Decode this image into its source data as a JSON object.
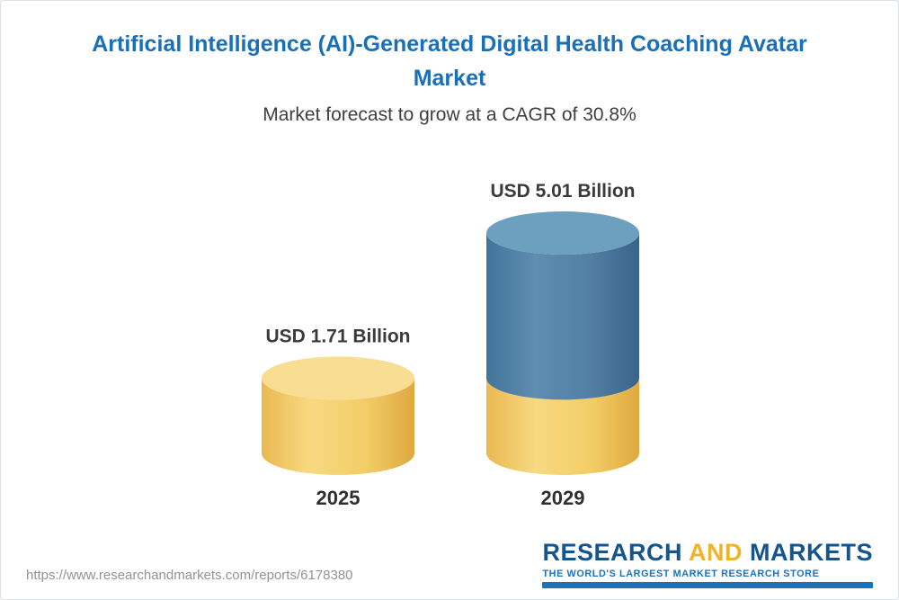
{
  "frame": {
    "background": "#ffffff",
    "border_color": "#dde2e6"
  },
  "header": {
    "title": "Artificial Intelligence (AI)-Generated Digital Health Coaching Avatar Market",
    "subtitle": "Market forecast to grow at a CAGR of 30.8%",
    "title_color": "#1a6fb5"
  },
  "chart_data": {
    "type": "bar",
    "style": "3d-cylinder",
    "title": "Artificial Intelligence (AI)-Generated Digital Health Coaching Avatar Market",
    "subtitle": "Market forecast to grow at a CAGR of 30.8%",
    "cagr": "30.8%",
    "unit": "USD Billion",
    "categories": [
      "2025",
      "2029"
    ],
    "values": [
      1.71,
      5.01
    ],
    "value_labels": [
      "USD 1.71 Billion",
      "USD 5.01 Billion"
    ],
    "ylim": [
      0,
      5.01
    ],
    "grid": false,
    "legend": false,
    "bars": [
      {
        "category": "2025",
        "value": 1.71,
        "label": "USD 1.71 Billion",
        "segments": [
          {
            "palette": "gold",
            "value": 1.71
          }
        ]
      },
      {
        "category": "2029",
        "value": 5.01,
        "label": "USD 5.01 Billion",
        "segments": [
          {
            "palette": "gold",
            "value": 1.71
          },
          {
            "palette": "blue",
            "value": 3.3
          }
        ]
      }
    ],
    "palette": {
      "gold": {
        "top": "#f8dd92",
        "body": [
          "#e9b952",
          "#f8d981",
          "#f3cd67",
          "#dfa93f"
        ]
      },
      "blue": {
        "top": "#6d9fbf",
        "body": [
          "#44739a",
          "#5f8eb2",
          "#527fa4",
          "#3a648a"
        ]
      }
    }
  },
  "footer": {
    "url": "https://www.researchandmarkets.com/reports/6178380",
    "logo": {
      "research": "RESEARCH",
      "and": " AND ",
      "markets": "MARKETS",
      "tagline": "THE WORLD'S LARGEST MARKET RESEARCH STORE",
      "blue": "#1d71b8",
      "gold": "#f0b32e"
    }
  }
}
